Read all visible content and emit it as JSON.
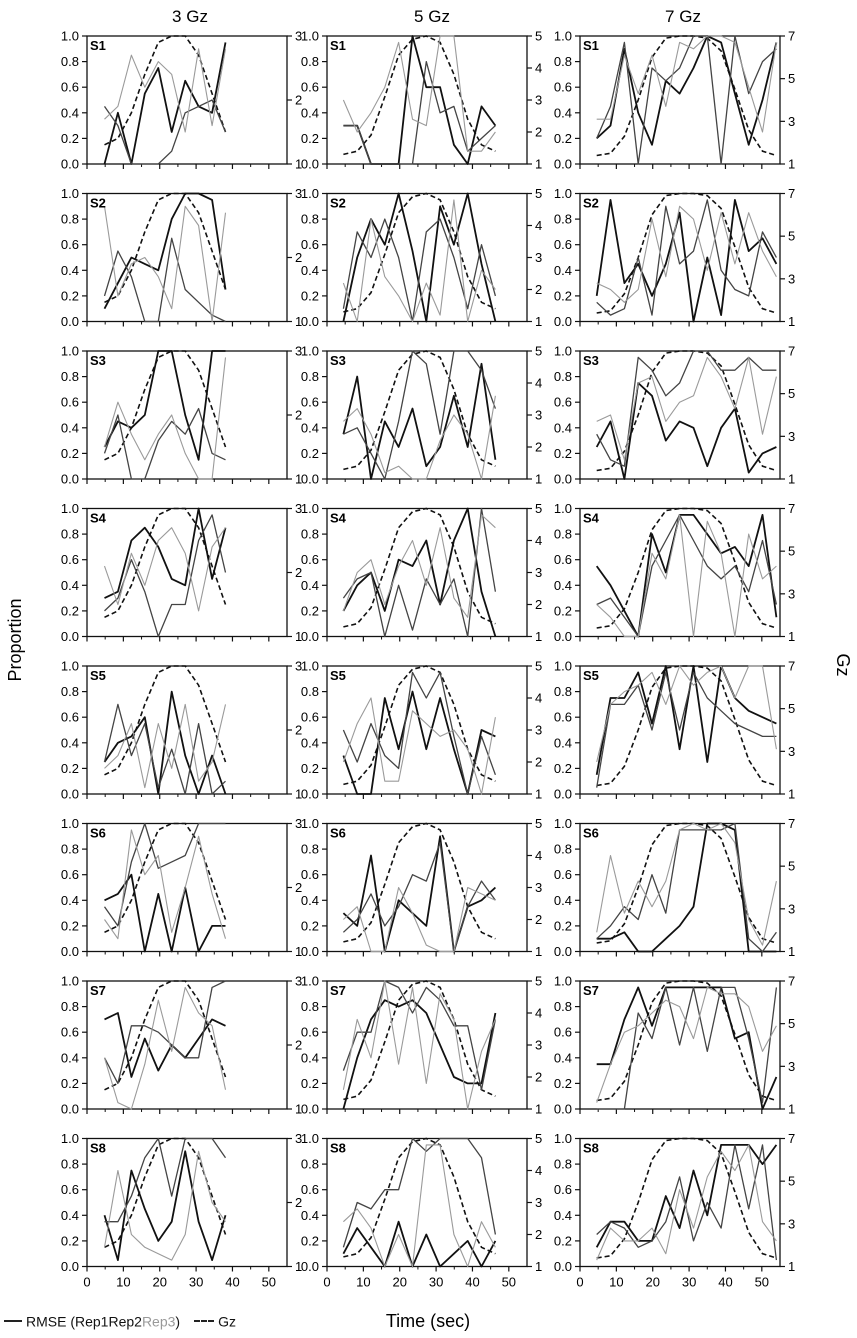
{
  "figure": {
    "col_titles": [
      "3 Gz",
      "5 Gz",
      "7 Gz"
    ],
    "ylabel_left": "Proportion",
    "ylabel_right": "Gz",
    "xlabel": "Time (sec)",
    "legend": {
      "rmse_prefix": "RMSE (Rep1Rep2",
      "rmse_rep3": "Rep3",
      "rmse_suffix": ")",
      "gz": "Gz"
    }
  },
  "chart_data": {
    "type": "line",
    "subjects": [
      "S1",
      "S2",
      "S3",
      "S4",
      "S5",
      "S6",
      "S7",
      "S8"
    ],
    "x_ticks": [
      0,
      10,
      20,
      30,
      40,
      50
    ],
    "xlim": [
      0,
      55
    ],
    "left_axis": {
      "ylim": [
        0,
        1
      ],
      "ticks": [
        "0.0",
        "0.2",
        "0.4",
        "0.6",
        "0.8",
        "1.0"
      ]
    },
    "right_axis": [
      {
        "ylim": [
          1,
          3
        ],
        "ticks": [
          "1",
          "2",
          "3"
        ]
      },
      {
        "ylim": [
          1,
          5
        ],
        "ticks": [
          "1",
          "2",
          "3",
          "4",
          "5"
        ]
      },
      {
        "ylim": [
          1,
          7
        ],
        "ticks": [
          "1",
          "3",
          "5",
          "7"
        ]
      }
    ],
    "rep_colors": [
      "#111111",
      "#444444",
      "#9a9a9a"
    ],
    "gz_color": "#111111",
    "x": [
      [
        4.8,
        8.5,
        12.2,
        15.9,
        19.6,
        23.3,
        27,
        30.7,
        34.4,
        38.1
      ],
      [
        4.5,
        8.3,
        12.1,
        15.9,
        19.7,
        23.5,
        27.3,
        31.1,
        34.9,
        38.7,
        42.5,
        46.3
      ],
      [
        4.6,
        8.4,
        12.2,
        16,
        19.8,
        23.6,
        27.4,
        31.2,
        35,
        38.8,
        42.6,
        46.4,
        50.2,
        54
      ]
    ],
    "gz": [
      [
        1.3,
        1.4,
        1.8,
        2.4,
        2.9,
        3.0,
        3.0,
        2.7,
        2.1,
        1.5
      ],
      [
        1.3,
        1.4,
        1.9,
        3.1,
        4.4,
        4.9,
        5.0,
        4.8,
        3.8,
        2.4,
        1.6,
        1.4
      ],
      [
        1.4,
        1.5,
        2.3,
        4.0,
        6.0,
        6.9,
        7.0,
        7.0,
        6.9,
        6.3,
        4.5,
        2.6,
        1.6,
        1.4
      ]
    ],
    "series": [
      [
        [
          [
            0.0,
            0.4,
            0.0,
            0.55,
            0.75,
            0.25,
            0.65,
            0.45,
            0.4,
            0.95
          ],
          [
            0.45,
            0.3,
            0.0,
            0.0,
            0.0,
            0.1,
            0.4,
            0.45,
            0.5,
            0.25
          ],
          [
            0.35,
            0.45,
            0.85,
            0.6,
            0.8,
            0.7,
            0.25,
            0.9,
            0.3,
            0.9
          ]
        ],
        [
          [
            0.1,
            0.3,
            0.5,
            0.45,
            0.4,
            0.8,
            1.0,
            1.0,
            0.95,
            0.25
          ],
          [
            0.2,
            0.55,
            0.35,
            0.0,
            0.0,
            0.65,
            0.25,
            0.15,
            0.05,
            0.0
          ],
          [
            0.9,
            0.2,
            0.45,
            0.5,
            0.35,
            0.1,
            0.9,
            0.75,
            0.0,
            0.85
          ]
        ],
        [
          [
            0.25,
            0.45,
            0.4,
            0.5,
            1.0,
            1.0,
            0.5,
            0.15,
            1.0,
            1.0
          ],
          [
            0.2,
            0.5,
            0.0,
            0.0,
            0.3,
            0.45,
            0.35,
            0.55,
            0.2,
            0.15
          ],
          [
            0.25,
            0.6,
            0.35,
            0.15,
            0.35,
            0.5,
            0.2,
            0.0,
            0.0,
            0.95
          ]
        ],
        [
          [
            0.3,
            0.35,
            0.75,
            0.85,
            0.7,
            0.45,
            0.4,
            1.0,
            0.45,
            0.85
          ],
          [
            0.2,
            0.3,
            0.6,
            0.35,
            0.0,
            0.25,
            0.25,
            0.75,
            0.95,
            0.5
          ],
          [
            0.55,
            0.25,
            0.65,
            0.4,
            0.75,
            0.85,
            0.65,
            0.2,
            0.7,
            0.85
          ]
        ],
        [
          [
            0.25,
            0.4,
            0.45,
            0.6,
            0.0,
            0.8,
            0.3,
            0.0,
            0.3,
            0.0
          ],
          [
            0.25,
            0.7,
            0.3,
            0.55,
            0.05,
            0.35,
            0.0,
            0.55,
            0.0,
            0.1
          ],
          [
            0.2,
            0.3,
            0.55,
            0.05,
            0.55,
            0.2,
            0.7,
            0.1,
            0.25,
            0.7
          ]
        ],
        [
          [
            0.4,
            0.45,
            0.6,
            0.0,
            0.45,
            0.0,
            0.5,
            0.0,
            0.2,
            0.2
          ],
          [
            0.35,
            0.2,
            0.7,
            1.0,
            0.65,
            0.7,
            0.75,
            1.0,
            1.0,
            1.0
          ],
          [
            0.25,
            0.1,
            0.95,
            0.6,
            0.75,
            0.15,
            0.5,
            0.9,
            0.45,
            0.1
          ]
        ],
        [
          [
            0.7,
            0.75,
            0.25,
            0.55,
            0.3,
            0.5,
            0.4,
            0.55,
            0.7,
            0.65
          ],
          [
            0.4,
            0.2,
            0.65,
            0.65,
            0.6,
            0.5,
            0.4,
            0.4,
            0.95,
            1.0
          ],
          [
            0.4,
            0.05,
            0.0,
            0.35,
            0.85,
            0.45,
            0.95,
            0.75,
            0.65,
            0.15
          ]
        ],
        [
          [
            0.4,
            0.05,
            0.75,
            0.45,
            0.2,
            0.35,
            0.9,
            0.35,
            0.05,
            0.4
          ],
          [
            0.35,
            0.35,
            0.55,
            0.85,
            1.0,
            0.55,
            1.0,
            1.0,
            1.0,
            0.85
          ],
          [
            0.15,
            0.75,
            0.25,
            0.15,
            0.1,
            0.05,
            0.25,
            0.9,
            0.5,
            0.35
          ]
        ]
      ],
      [
        [
          [
            0.3,
            0.3,
            0.0,
            0.0,
            0.0,
            1.0,
            0.6,
            0.6,
            0.15,
            0.0,
            0.45,
            0.3
          ],
          [
            0.3,
            0.3,
            0.0,
            0.0,
            0.0,
            0.0,
            0.8,
            0.4,
            0.45,
            0.1,
            0.2,
            0.3
          ],
          [
            0.5,
            0.25,
            0.4,
            0.6,
            0.95,
            0.35,
            0.3,
            1.0,
            1.0,
            0.1,
            0.1,
            0.25
          ]
        ],
        [
          [
            0.0,
            0.5,
            0.8,
            0.6,
            1.0,
            0.55,
            0.0,
            0.9,
            0.6,
            1.0,
            0.45,
            0.0
          ],
          [
            0.1,
            0.7,
            0.5,
            0.8,
            0.5,
            0.0,
            0.7,
            0.8,
            0.5,
            0.1,
            0.6,
            0.2
          ],
          [
            0.3,
            0.0,
            0.8,
            0.35,
            0.2,
            0.0,
            0.3,
            0.05,
            0.95,
            0.0,
            0.4,
            0.25
          ]
        ],
        [
          [
            0.35,
            0.8,
            0.0,
            0.45,
            0.25,
            0.55,
            0.1,
            0.25,
            0.65,
            0.25,
            0.9,
            0.15
          ],
          [
            0.35,
            0.4,
            0.2,
            0.0,
            0.45,
            1.0,
            0.9,
            0.35,
            1.0,
            1.0,
            0.85,
            0.55
          ],
          [
            0.45,
            0.55,
            0.35,
            0.05,
            0.1,
            0.0,
            0.0,
            0.3,
            0.5,
            0.35,
            0.0,
            0.65
          ]
        ],
        [
          [
            0.2,
            0.4,
            0.5,
            0.2,
            0.6,
            0.55,
            0.75,
            0.25,
            0.75,
            1.0,
            0.35,
            0.0
          ],
          [
            0.3,
            0.45,
            0.5,
            0.0,
            0.4,
            0.05,
            0.45,
            0.25,
            0.45,
            0.0,
            1.0,
            0.35
          ],
          [
            0.2,
            0.5,
            0.6,
            0.25,
            0.55,
            0.75,
            0.4,
            0.85,
            0.3,
            0.15,
            0.95,
            0.85
          ]
        ],
        [
          [
            0.3,
            0.0,
            0.0,
            0.75,
            0.35,
            0.8,
            0.35,
            0.75,
            0.35,
            0.0,
            0.5,
            0.45
          ],
          [
            0.5,
            0.25,
            0.55,
            0.3,
            0.2,
            0.95,
            0.75,
            0.95,
            0.45,
            0.0,
            0.45,
            0.15
          ],
          [
            0.25,
            0.55,
            0.75,
            0.1,
            0.1,
            0.65,
            0.55,
            0.45,
            0.5,
            0.35,
            0.0,
            0.6
          ]
        ],
        [
          [
            0.3,
            0.2,
            0.75,
            0.0,
            0.4,
            0.3,
            0.2,
            0.9,
            0.0,
            0.35,
            0.4,
            0.5
          ],
          [
            0.15,
            0.25,
            0.45,
            0.2,
            0.35,
            0.6,
            0.55,
            0.85,
            0.0,
            0.35,
            0.55,
            0.4
          ],
          [
            0.25,
            0.35,
            0.0,
            0.0,
            0.5,
            0.3,
            0.05,
            0.0,
            0.0,
            0.5,
            0.45,
            0.4
          ]
        ],
        [
          [
            0.0,
            0.4,
            0.7,
            0.85,
            0.8,
            0.85,
            0.75,
            0.5,
            0.25,
            0.2,
            0.2,
            0.75
          ],
          [
            0.3,
            0.6,
            0.6,
            1.0,
            0.95,
            0.75,
            0.95,
            0.85,
            0.65,
            0.65,
            0.15,
            0.7
          ],
          [
            0.15,
            0.7,
            0.4,
            1.0,
            0.35,
            0.95,
            0.2,
            0.9,
            0.7,
            0.0,
            0.45,
            0.7
          ]
        ],
        [
          [
            0.1,
            0.3,
            0.15,
            0.0,
            0.35,
            0.0,
            0.25,
            0.0,
            0.1,
            0.2,
            0.0,
            0.2
          ],
          [
            0.15,
            0.5,
            0.45,
            0.6,
            0.6,
            1.0,
            0.9,
            1.0,
            1.0,
            1.0,
            0.85,
            0.25
          ],
          [
            0.35,
            0.45,
            0.3,
            0.0,
            0.25,
            0.0,
            0.95,
            0.95,
            0.25,
            0.0,
            0.35,
            0.15
          ]
        ]
      ],
      [
        [
          [
            0.2,
            0.3,
            0.9,
            0.4,
            0.15,
            0.65,
            0.55,
            0.75,
            1.0,
            0.95,
            0.55,
            0.15,
            0.5,
            0.95
          ],
          [
            0.2,
            0.45,
            0.95,
            0.0,
            0.75,
            0.65,
            0.75,
            1.0,
            1.0,
            0.0,
            1.0,
            0.55,
            0.8,
            0.9
          ],
          [
            0.35,
            0.35,
            0.85,
            0.55,
            0.85,
            0.45,
            0.95,
            0.9,
            1.0,
            1.0,
            0.95,
            0.6,
            0.25,
            0.95
          ]
        ],
        [
          [
            0.2,
            0.95,
            0.3,
            0.45,
            0.2,
            0.45,
            0.85,
            0.0,
            0.5,
            0.05,
            0.95,
            0.55,
            0.65,
            0.45
          ],
          [
            0.15,
            0.05,
            0.1,
            0.5,
            0.05,
            0.9,
            0.45,
            0.55,
            0.95,
            0.4,
            0.25,
            0.2,
            0.7,
            0.5
          ],
          [
            0.3,
            0.25,
            0.15,
            0.25,
            0.8,
            0.35,
            0.9,
            0.8,
            0.4,
            0.85,
            0.45,
            0.85,
            0.55,
            0.35
          ]
        ],
        [
          [
            0.25,
            0.45,
            0.0,
            0.75,
            0.65,
            0.3,
            0.45,
            0.4,
            0.1,
            0.4,
            0.55,
            0.05,
            0.2,
            0.25
          ],
          [
            0.35,
            0.15,
            0.1,
            0.95,
            0.85,
            0.65,
            0.75,
            1.0,
            1.0,
            0.85,
            0.85,
            0.95,
            0.85,
            0.85
          ],
          [
            0.45,
            0.5,
            0.15,
            0.75,
            0.8,
            0.45,
            0.6,
            0.65,
            0.95,
            0.8,
            0.55,
            0.95,
            0.35,
            0.8
          ]
        ],
        [
          [
            0.55,
            0.4,
            0.2,
            0.0,
            0.8,
            0.5,
            0.95,
            0.95,
            0.8,
            0.65,
            0.7,
            0.55,
            0.95,
            0.15
          ],
          [
            0.25,
            0.3,
            0.15,
            0.0,
            0.55,
            0.75,
            0.95,
            0.75,
            0.55,
            0.45,
            0.55,
            0.35,
            0.75,
            0.25
          ],
          [
            0.25,
            0.15,
            0.0,
            0.0,
            0.65,
            0.45,
            0.95,
            0.0,
            0.9,
            0.65,
            0.0,
            0.8,
            0.45,
            0.55
          ]
        ],
        [
          [
            0.15,
            0.75,
            0.75,
            0.95,
            0.55,
            1.0,
            0.35,
            1.0,
            0.25,
            1.0,
            0.75,
            0.65,
            0.6,
            0.55
          ],
          [
            0.05,
            0.7,
            0.7,
            0.85,
            0.5,
            0.95,
            0.5,
            0.95,
            0.75,
            0.65,
            0.55,
            0.5,
            0.45,
            0.45
          ],
          [
            0.25,
            0.7,
            0.8,
            0.85,
            0.95,
            0.7,
            1.0,
            0.85,
            0.95,
            1.0,
            0.75,
            1.0,
            1.0,
            0.35
          ]
        ],
        [
          [
            0.1,
            0.1,
            0.15,
            0.0,
            0.0,
            0.1,
            0.2,
            0.35,
            1.0,
            1.0,
            0.95,
            0.0,
            0.0,
            0.0
          ],
          [
            0.1,
            0.2,
            0.35,
            0.25,
            0.6,
            0.3,
            0.95,
            0.95,
            0.95,
            0.95,
            1.0,
            0.1,
            0.0,
            0.15
          ],
          [
            0.15,
            0.75,
            0.3,
            0.55,
            0.35,
            0.55,
            0.95,
            1.0,
            0.95,
            1.0,
            0.85,
            0.25,
            0.05,
            0.55
          ]
        ],
        [
          [
            0.35,
            0.35,
            0.7,
            0.95,
            0.65,
            0.95,
            0.95,
            0.95,
            0.95,
            0.95,
            0.55,
            0.6,
            0.0,
            0.25
          ],
          [
            0.0,
            0.0,
            0.0,
            0.75,
            0.55,
            0.95,
            0.5,
            0.95,
            0.45,
            0.95,
            0.95,
            0.55,
            0.05,
            0.95
          ],
          [
            0.05,
            0.35,
            0.6,
            0.65,
            0.75,
            0.85,
            0.8,
            0.55,
            0.95,
            0.9,
            0.9,
            0.8,
            0.45,
            0.65
          ]
        ],
        [
          [
            0.15,
            0.35,
            0.35,
            0.2,
            0.2,
            0.55,
            0.3,
            0.75,
            0.4,
            0.95,
            0.95,
            0.95,
            0.8,
            0.95
          ],
          [
            0.25,
            0.35,
            0.3,
            0.15,
            0.2,
            0.35,
            0.7,
            0.2,
            0.5,
            0.3,
            0.95,
            0.45,
            0.95,
            0.05
          ],
          [
            0.05,
            0.3,
            0.2,
            0.2,
            0.3,
            0.1,
            0.6,
            0.3,
            0.7,
            0.9,
            0.75,
            0.95,
            0.35,
            0.2
          ]
        ]
      ]
    ]
  }
}
